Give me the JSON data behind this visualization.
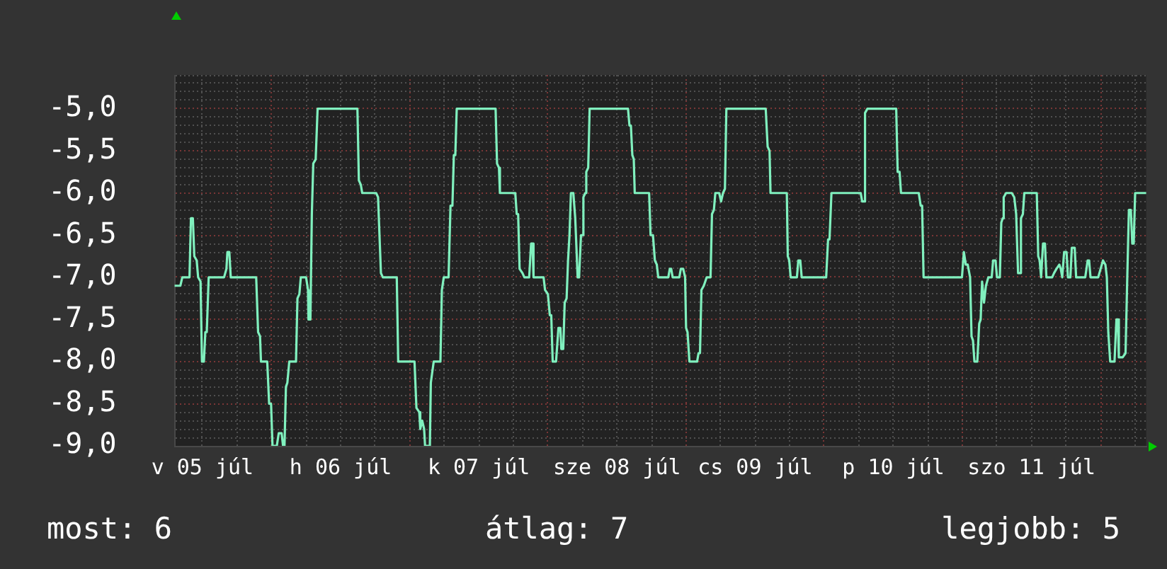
{
  "chart_data": {
    "type": "line",
    "color": "#80f0be",
    "marker": "none",
    "line_style": "solid",
    "grid": true,
    "xlim": [
      "--07-05T07:10",
      "--07-12T07:55"
    ],
    "ylim": [
      -9.0,
      -4.6
    ],
    "xticks": [
      {
        "value": "--07-05T12:00",
        "label": "v 05 júl"
      },
      {
        "value": "--07-05T18:00",
        "label": null
      },
      {
        "value": "--07-06T00:00",
        "label": null
      },
      {
        "value": "--07-06T06:00",
        "label": null
      },
      {
        "value": "--07-06T12:00",
        "label": "h 06 júl"
      },
      {
        "value": "--07-06T18:00",
        "label": null
      },
      {
        "value": "--07-07T00:00",
        "label": null
      },
      {
        "value": "--07-07T06:00",
        "label": null
      },
      {
        "value": "--07-07T12:00",
        "label": "k 07 júl"
      },
      {
        "value": "--07-07T18:00",
        "label": null
      },
      {
        "value": "--07-08T00:00",
        "label": null
      },
      {
        "value": "--07-08T06:00",
        "label": null
      },
      {
        "value": "--07-08T12:00",
        "label": "sze 08 júl"
      },
      {
        "value": "--07-08T18:00",
        "label": null
      },
      {
        "value": "--07-09T00:00",
        "label": null
      },
      {
        "value": "--07-09T06:00",
        "label": null
      },
      {
        "value": "--07-09T12:00",
        "label": "cs 09 júl"
      },
      {
        "value": "--07-09T18:00",
        "label": null
      },
      {
        "value": "--07-10T00:00",
        "label": null
      },
      {
        "value": "--07-10T06:00",
        "label": null
      },
      {
        "value": "--07-10T12:00",
        "label": "p 10 júl"
      },
      {
        "value": "--07-10T18:00",
        "label": null
      },
      {
        "value": "--07-11T00:00",
        "label": null
      },
      {
        "value": "--07-11T06:00",
        "label": null
      },
      {
        "value": "--07-11T12:00",
        "label": "szo 11 júl"
      },
      {
        "value": "--07-11T18:00",
        "label": null
      },
      {
        "value": "--07-12T00:00",
        "label": null
      },
      {
        "value": "--07-12T06:00",
        "label": null
      }
    ],
    "yticks": [
      {
        "value": -9.0,
        "label": "-9,0"
      },
      {
        "value": -8.9,
        "label": null
      },
      {
        "value": -8.8,
        "label": null
      },
      {
        "value": -8.7,
        "label": null
      },
      {
        "value": -8.6,
        "label": null
      },
      {
        "value": -8.5,
        "label": "-8,5"
      },
      {
        "value": -8.4,
        "label": null
      },
      {
        "value": -8.3,
        "label": null
      },
      {
        "value": -8.2,
        "label": null
      },
      {
        "value": -8.1,
        "label": null
      },
      {
        "value": -8.0,
        "label": "-8,0"
      },
      {
        "value": -7.9,
        "label": null
      },
      {
        "value": -7.8,
        "label": null
      },
      {
        "value": -7.7,
        "label": null
      },
      {
        "value": -7.6,
        "label": null
      },
      {
        "value": -7.5,
        "label": "-7,5"
      },
      {
        "value": -7.4,
        "label": null
      },
      {
        "value": -7.3,
        "label": null
      },
      {
        "value": -7.2,
        "label": null
      },
      {
        "value": -7.1,
        "label": null
      },
      {
        "value": -7.0,
        "label": "-7,0"
      },
      {
        "value": -6.9,
        "label": null
      },
      {
        "value": -6.8,
        "label": null
      },
      {
        "value": -6.7,
        "label": null
      },
      {
        "value": -6.6,
        "label": null
      },
      {
        "value": -6.5,
        "label": "-6,5"
      },
      {
        "value": -6.4,
        "label": null
      },
      {
        "value": -6.3,
        "label": null
      },
      {
        "value": -6.2,
        "label": null
      },
      {
        "value": -6.1,
        "label": null
      },
      {
        "value": -6.0,
        "label": "-6,0"
      },
      {
        "value": -5.9,
        "label": null
      },
      {
        "value": -5.8,
        "label": null
      },
      {
        "value": -5.7,
        "label": null
      },
      {
        "value": -5.6,
        "label": null
      },
      {
        "value": -5.5,
        "label": "-5,5"
      },
      {
        "value": -5.4,
        "label": null
      },
      {
        "value": -5.3,
        "label": null
      },
      {
        "value": -5.2,
        "label": null
      },
      {
        "value": -5.1,
        "label": null
      },
      {
        "value": -5.0,
        "label": "-5,0"
      },
      {
        "value": -4.9,
        "label": null
      },
      {
        "value": -4.8,
        "label": null
      },
      {
        "value": -4.7,
        "label": null
      },
      {
        "value": -4.6,
        "label": null
      }
    ],
    "annotations": [
      "most: 6",
      "átlag: 7",
      "legjobb: 5"
    ],
    "x": [
      "--07-05T07:10",
      "--07-05T08:10",
      "--07-05T08:30",
      "--07-05T09:45",
      "--07-05T10:00",
      "--07-05T10:20",
      "--07-05T10:35",
      "--07-05T11:00",
      "--07-05T11:15",
      "--07-05T11:40",
      "--07-05T11:55",
      "--07-05T12:15",
      "--07-05T12:30",
      "--07-05T12:45",
      "--07-05T13:05",
      "--07-05T15:45",
      "--07-05T16:10",
      "--07-05T16:20",
      "--07-05T16:40",
      "--07-05T16:55",
      "--07-05T21:20",
      "--07-05T21:40",
      "--07-05T22:00",
      "--07-05T22:10",
      "--07-05T23:15",
      "--07-05T23:35",
      "--07-05T23:55",
      "--07-06T00:10",
      "--07-06T00:55",
      "--07-06T01:15",
      "--07-06T01:45",
      "--07-06T02:00",
      "--07-06T02:15",
      "--07-06T02:30",
      "--07-06T02:45",
      "--07-06T03:05",
      "--07-06T04:15",
      "--07-06T04:30",
      "--07-06T04:50",
      "--07-06T05:05",
      "--07-06T06:00",
      "--07-06T06:20",
      "--07-06T06:25",
      "--07-06T06:45",
      "--07-06T07:00",
      "--07-06T07:15",
      "--07-06T07:40",
      "--07-06T08:00",
      "--07-06T14:55",
      "--07-06T15:10",
      "--07-06T15:30",
      "--07-06T15:45",
      "--07-06T18:10",
      "--07-06T18:30",
      "--07-06T19:00",
      "--07-06T19:20",
      "--07-06T21:45",
      "--07-06T22:00",
      "--07-07T00:50",
      "--07-07T01:10",
      "--07-07T01:40",
      "--07-07T01:50",
      "--07-07T02:10",
      "--07-07T02:30",
      "--07-07T02:40",
      "--07-07T03:30",
      "--07-07T03:40",
      "--07-07T04:10",
      "--07-07T05:20",
      "--07-07T05:35",
      "--07-07T05:55",
      "--07-07T06:45",
      "--07-07T07:05",
      "--07-07T07:25",
      "--07-07T07:40",
      "--07-07T07:55",
      "--07-07T08:10",
      "--07-07T14:55",
      "--07-07T15:10",
      "--07-07T15:30",
      "--07-07T15:40",
      "--07-07T18:20",
      "--07-07T18:35",
      "--07-07T18:50",
      "--07-07T19:05",
      "--07-07T19:35",
      "--07-07T19:55",
      "--07-07T20:45",
      "--07-07T21:05",
      "--07-07T21:20",
      "--07-07T21:30",
      "--07-07T23:15",
      "--07-07T23:30",
      "--07-08T00:00",
      "--07-08T00:20",
      "--07-08T00:35",
      "--07-08T00:50",
      "--07-08T01:25",
      "--07-08T01:50",
      "--07-08T02:10",
      "--07-08T02:20",
      "--07-08T02:40",
      "--07-08T02:55",
      "--07-08T03:15",
      "--07-08T03:30",
      "--07-08T03:45",
      "--07-08T04:00",
      "--07-08T04:25",
      "--07-08T04:45",
      "--07-08T04:55",
      "--07-08T05:10",
      "--07-08T05:25",
      "--07-08T05:45",
      "--07-08T06:00",
      "--07-08T06:10",
      "--07-08T06:30",
      "--07-08T06:40",
      "--07-08T07:00",
      "--07-08T07:15",
      "--07-08T13:55",
      "--07-08T14:10",
      "--07-08T14:25",
      "--07-08T14:40",
      "--07-08T14:55",
      "--07-08T15:05",
      "--07-08T17:35",
      "--07-08T17:50",
      "--07-08T18:15",
      "--07-08T18:35",
      "--07-08T18:55",
      "--07-08T19:10",
      "--07-08T20:55",
      "--07-08T21:10",
      "--07-08T21:25",
      "--07-08T21:40",
      "--07-08T22:50",
      "--07-08T23:05",
      "--07-08T23:30",
      "--07-08T23:50",
      "--07-09T00:00",
      "--07-09T00:15",
      "--07-09T00:35",
      "--07-09T01:55",
      "--07-09T02:10",
      "--07-09T02:25",
      "--07-09T02:40",
      "--07-09T03:05",
      "--07-09T03:35",
      "--07-09T04:15",
      "--07-09T04:30",
      "--07-09T04:50",
      "--07-09T05:05",
      "--07-09T05:45",
      "--07-09T06:05",
      "--07-09T06:25",
      "--07-09T06:45",
      "--07-09T07:00",
      "--07-09T13:50",
      "--07-09T14:10",
      "--07-09T14:30",
      "--07-09T14:40",
      "--07-09T17:30",
      "--07-09T17:40",
      "--07-09T17:55",
      "--07-09T18:10",
      "--07-09T19:15",
      "--07-09T19:30",
      "--07-09T19:50",
      "--07-09T20:05",
      "--07-10T00:20",
      "--07-10T00:40",
      "--07-10T00:55",
      "--07-10T01:15",
      "--07-10T06:20",
      "--07-10T06:35",
      "--07-10T06:55",
      "--07-10T07:05",
      "--07-10T07:30",
      "--07-10T12:30",
      "--07-10T12:45",
      "--07-10T13:05",
      "--07-10T13:20",
      "--07-10T16:25",
      "--07-10T16:45",
      "--07-10T17:00",
      "--07-10T17:15",
      "--07-10T23:55",
      "--07-11T00:15",
      "--07-11T00:35",
      "--07-11T00:55",
      "--07-11T01:20",
      "--07-11T01:35",
      "--07-11T01:50",
      "--07-11T02:05",
      "--07-11T02:35",
      "--07-11T02:55",
      "--07-11T03:10",
      "--07-11T03:25",
      "--07-11T03:45",
      "--07-11T04:05",
      "--07-11T04:30",
      "--07-11T05:05",
      "--07-11T05:20",
      "--07-11T05:45",
      "--07-11T06:00",
      "--07-11T06:30",
      "--07-11T06:45",
      "--07-11T07:00",
      "--07-11T07:10",
      "--07-11T07:35",
      "--07-11T08:35",
      "--07-11T09:00",
      "--07-11T09:20",
      "--07-11T09:40",
      "--07-11T10:00",
      "--07-11T10:10",
      "--07-11T10:30",
      "--07-11T10:45",
      "--07-11T12:55",
      "--07-11T13:10",
      "--07-11T13:25",
      "--07-11T13:40",
      "--07-11T14:00",
      "--07-11T14:20",
      "--07-11T14:35",
      "--07-11T15:35",
      "--07-11T15:55",
      "--07-11T16:20",
      "--07-11T16:50",
      "--07-11T17:05",
      "--07-11T17:20",
      "--07-11T17:40",
      "--07-11T18:05",
      "--07-11T18:20",
      "--07-11T18:45",
      "--07-11T19:00",
      "--07-11T19:30",
      "--07-11T19:45",
      "--07-11T21:20",
      "--07-11T21:45",
      "--07-11T22:00",
      "--07-11T22:15",
      "--07-11T23:35",
      "--07-12T00:00",
      "--07-12T00:25",
      "--07-12T00:50",
      "--07-12T01:05",
      "--07-12T01:20",
      "--07-12T01:40",
      "--07-12T02:25",
      "--07-12T02:45",
      "--07-12T03:00",
      "--07-12T03:10",
      "--07-12T03:50",
      "--07-12T04:20",
      "--07-12T04:40",
      "--07-12T04:55",
      "--07-12T05:15",
      "--07-12T05:30",
      "--07-12T05:45",
      "--07-12T06:00",
      "--07-12T07:55"
    ],
    "values": [
      -7.1,
      -7.1,
      -7.0,
      -7.0,
      -6.3,
      -6.3,
      -6.75,
      -6.8,
      -7.0,
      -7.05,
      -8.0,
      -8.0,
      -7.65,
      -7.65,
      -7.0,
      -7.0,
      -6.9,
      -6.7,
      -6.7,
      -7.0,
      -7.0,
      -7.65,
      -7.7,
      -8.0,
      -8.0,
      -8.5,
      -8.5,
      -9.0,
      -9.0,
      -8.85,
      -8.85,
      -9.0,
      -9.0,
      -8.3,
      -8.25,
      -8.0,
      -8.0,
      -7.25,
      -7.2,
      -7.0,
      -7.0,
      -7.15,
      -7.5,
      -7.5,
      -6.25,
      -5.65,
      -5.6,
      -5.0,
      -5.0,
      -5.85,
      -5.9,
      -6.0,
      -6.0,
      -6.05,
      -6.95,
      -7.0,
      -7.0,
      -8.0,
      -8.0,
      -8.55,
      -8.6,
      -8.8,
      -8.7,
      -8.8,
      -9.0,
      -9.0,
      -8.25,
      -8.0,
      -8.0,
      -7.15,
      -7.0,
      -7.0,
      -6.15,
      -6.15,
      -5.55,
      -5.55,
      -5.0,
      -5.0,
      -5.65,
      -5.7,
      -6.0,
      -6.0,
      -6.25,
      -6.25,
      -6.9,
      -6.95,
      -7.0,
      -7.0,
      -6.6,
      -6.6,
      -7.0,
      -7.0,
      -7.15,
      -7.2,
      -7.45,
      -7.45,
      -8.0,
      -8.0,
      -7.6,
      -7.6,
      -7.85,
      -7.85,
      -7.3,
      -7.25,
      -6.8,
      -6.5,
      -6.0,
      -6.0,
      -6.3,
      -6.3,
      -7.0,
      -7.0,
      -6.5,
      -6.5,
      -6.05,
      -6.0,
      -5.75,
      -5.7,
      -5.0,
      -5.0,
      -5.2,
      -5.2,
      -5.55,
      -5.6,
      -6.0,
      -6.0,
      -6.5,
      -6.5,
      -6.8,
      -6.85,
      -7.0,
      -7.0,
      -6.9,
      -6.9,
      -7.0,
      -7.0,
      -6.9,
      -6.9,
      -7.0,
      -7.6,
      -7.65,
      -8.0,
      -8.0,
      -7.9,
      -7.9,
      -7.15,
      -7.1,
      -7.0,
      -7.0,
      -6.25,
      -6.2,
      -6.0,
      -6.0,
      -6.1,
      -6.0,
      -5.95,
      -5.0,
      -5.0,
      -5.45,
      -5.5,
      -6.0,
      -6.0,
      -6.75,
      -6.8,
      -7.0,
      -7.0,
      -6.8,
      -6.8,
      -7.0,
      -7.0,
      -6.55,
      -6.55,
      -6.0,
      -6.0,
      -6.1,
      -6.1,
      -5.05,
      -5.0,
      -5.0,
      -5.75,
      -5.75,
      -6.0,
      -6.0,
      -6.15,
      -6.15,
      -7.0,
      -7.0,
      -6.7,
      -6.85,
      -6.85,
      -7.0,
      -7.7,
      -7.75,
      -8.0,
      -8.0,
      -7.55,
      -7.5,
      -7.05,
      -7.3,
      -7.1,
      -7.0,
      -7.0,
      -6.8,
      -6.8,
      -7.0,
      -7.0,
      -6.35,
      -6.3,
      -6.05,
      -6.0,
      -6.0,
      -6.05,
      -6.25,
      -6.95,
      -6.95,
      -6.3,
      -6.25,
      -6.0,
      -6.0,
      -6.75,
      -6.8,
      -7.0,
      -6.6,
      -6.6,
      -7.0,
      -7.0,
      -6.95,
      -6.9,
      -6.85,
      -6.9,
      -7.0,
      -6.7,
      -6.7,
      -7.0,
      -7.0,
      -6.65,
      -6.65,
      -7.0,
      -7.0,
      -6.8,
      -6.8,
      -7.0,
      -7.0,
      -6.9,
      -6.8,
      -6.85,
      -7.0,
      -7.65,
      -8.0,
      -8.0,
      -7.5,
      -7.5,
      -7.95,
      -7.95,
      -7.9,
      -6.9,
      -6.2,
      -6.2,
      -6.6,
      -6.6,
      -6.0,
      -6.0
    ]
  }
}
